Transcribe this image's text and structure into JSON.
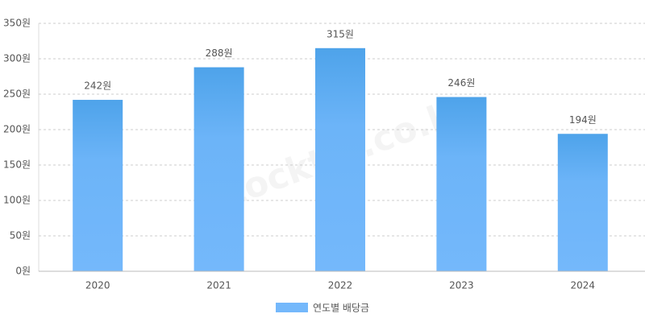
{
  "chart_data": {
    "type": "bar",
    "watermark": "stocktip.co.kr",
    "categories": [
      "2020",
      "2021",
      "2022",
      "2023",
      "2024"
    ],
    "series": [
      {
        "name": "연도별 배당금",
        "color": "#74b8fb",
        "values": [
          242,
          288,
          315,
          246,
          194
        ],
        "value_labels": [
          "242원",
          "288원",
          "315원",
          "246원",
          "194원"
        ]
      }
    ],
    "ylim": [
      0,
      350
    ],
    "yticks": [
      {
        "value": 0,
        "label": "0원"
      },
      {
        "value": 50,
        "label": "50원"
      },
      {
        "value": 100,
        "label": "100원"
      },
      {
        "value": 150,
        "label": "150원"
      },
      {
        "value": 200,
        "label": "200원"
      },
      {
        "value": 250,
        "label": "250원"
      },
      {
        "value": 300,
        "label": "300원"
      },
      {
        "value": 350,
        "label": "350원"
      }
    ],
    "grid": true,
    "legend": "bottom"
  }
}
